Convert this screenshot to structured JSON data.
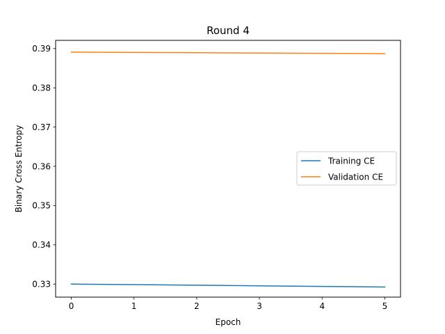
{
  "chart_data": {
    "type": "line",
    "title": "Round 4",
    "xlabel": "Epoch",
    "ylabel": "Binary Cross Entropy",
    "xlim": [
      -0.25,
      5.25
    ],
    "ylim": [
      0.32667,
      0.39209
    ],
    "xticks": [
      0,
      1,
      2,
      3,
      4,
      5
    ],
    "yticks": [
      0.33,
      0.34,
      0.35,
      0.36,
      0.37,
      0.38,
      0.39
    ],
    "grid": false,
    "legend_position": "center-right",
    "x": [
      0,
      1,
      2,
      3,
      4,
      5
    ],
    "series": [
      {
        "name": "Training CE",
        "color": "#1f77b4",
        "values": [
          0.33,
          0.32985,
          0.3297,
          0.32955,
          0.3294,
          0.32925
        ]
      },
      {
        "name": "Validation CE",
        "color": "#ff7f0e",
        "values": [
          0.3891,
          0.38902,
          0.38894,
          0.38886,
          0.38878,
          0.3887
        ]
      }
    ]
  }
}
